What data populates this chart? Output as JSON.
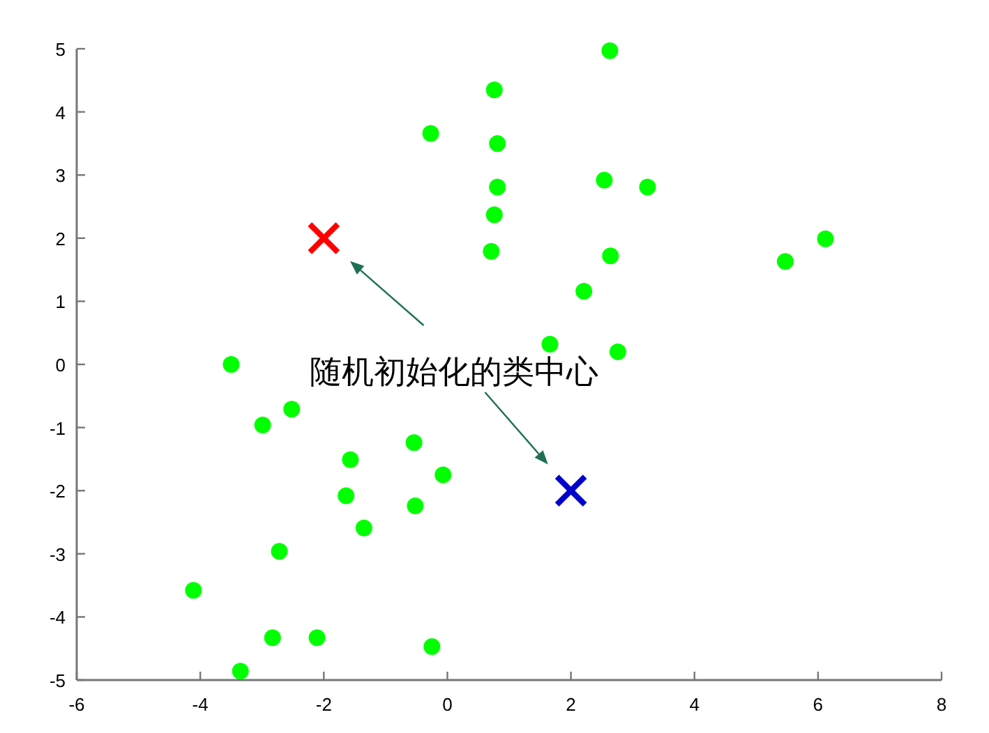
{
  "chart_data": {
    "type": "scatter",
    "xlim": [
      -6,
      8
    ],
    "xticks": [
      -6,
      -4,
      -2,
      0,
      2,
      4,
      6,
      8
    ],
    "ylim": [
      -5,
      5
    ],
    "yticks": [
      -5,
      -4,
      -3,
      -2,
      -1,
      0,
      1,
      2,
      3,
      4,
      5
    ],
    "series": [
      {
        "color": "#00ff00",
        "marker": "circle",
        "x": [
          -3.5,
          -2.99,
          -2.52,
          -1.57,
          -1.64,
          -1.35,
          -0.54,
          -0.07,
          -0.52,
          -2.72,
          -4.11,
          -2.83,
          -2.11,
          -3.35,
          -0.25,
          -0.27,
          0.76,
          0.81,
          0.81,
          0.76,
          0.71,
          2.63,
          2.54,
          3.24,
          2.64,
          2.21,
          1.66,
          2.76,
          5.47,
          6.12
        ],
        "values": [
          0,
          -0.96,
          -0.71,
          -1.51,
          -2.08,
          -2.59,
          -1.24,
          -1.75,
          -2.24,
          -2.96,
          -3.58,
          -4.33,
          -4.33,
          -4.86,
          -4.47,
          3.66,
          4.35,
          3.5,
          2.81,
          2.37,
          1.79,
          4.97,
          2.92,
          2.81,
          1.72,
          1.16,
          0.32,
          0.2,
          1.63,
          1.99
        ]
      },
      {
        "color": "#ff0000",
        "marker": "cross",
        "x": [
          -2
        ],
        "values": [
          2
        ]
      },
      {
        "color": "#0000cc",
        "marker": "cross",
        "x": [
          2
        ],
        "values": [
          -2
        ]
      }
    ],
    "annotations": [
      "随机初始化的类中心"
    ]
  }
}
